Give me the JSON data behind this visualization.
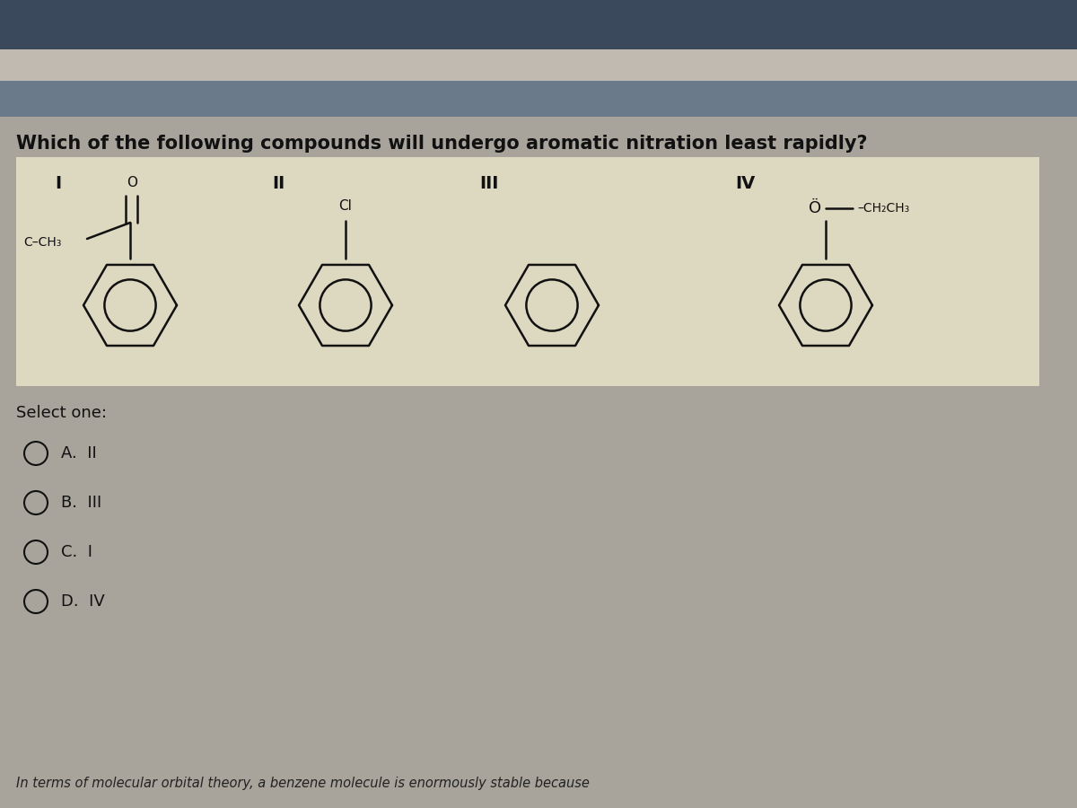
{
  "question": "Which of the following compounds will undergo aromatic nitration least rapidly?",
  "bg_color_top": "#4a5a6a",
  "bg_color_mid": "#b0aaa0",
  "bg_color_main": "#a8a49c",
  "panel_bg": "#e0d8c0",
  "text_color": "#111111",
  "options_color": "#111111",
  "options": [
    "A.  II",
    "B.  III",
    "C.  I",
    "D.  IV"
  ],
  "question_text": "Which of the following compounds will undergo aromatic nitration least rapidly?",
  "select_text": "Select one:",
  "footer_text": "In terms of molecular orbital theory, a benzene molecule is enormously stable because"
}
